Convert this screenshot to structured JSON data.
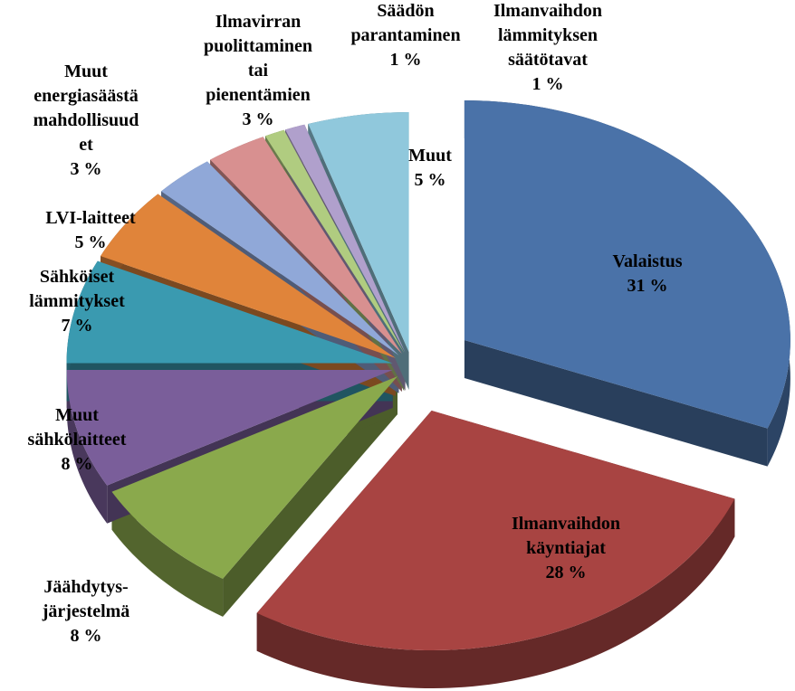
{
  "chart_data": {
    "type": "pie",
    "categories": [
      "Valaistus",
      "Ilmanvaihdon\nkäyntiajat",
      "Jäähdytys-\njärjestelmä",
      "Muut\nsähkölaitteet",
      "Sähköiset\nlämmitykset",
      "LVI-laitteet",
      "Muut\nenergiasäästä\nmahdollisuud\net",
      "Ilmavirran\npuolittaminen\ntai\npienentämien",
      "Säädön\nparantaminen",
      "Ilmanvaihdon\nlämmityksen\nsäätötavat",
      "Muut"
    ],
    "values": [
      31,
      28,
      8,
      8,
      7,
      5,
      3,
      3,
      1,
      1,
      5
    ],
    "value_labels": [
      "31 %",
      "28 %",
      "8 %",
      "8 %",
      "7 %",
      "5 %",
      "3 %",
      "3 %",
      "1 %",
      "1 %",
      "5 %"
    ],
    "colors": [
      "#4a72a8",
      "#a84442",
      "#8aa94c",
      "#7a5e9a",
      "#3a9ab0",
      "#e0843a",
      "#90a8d8",
      "#d89090",
      "#b0cc80",
      "#b0a0cc",
      "#90c8dc"
    ]
  }
}
